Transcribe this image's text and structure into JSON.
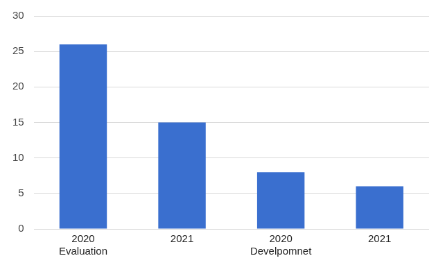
{
  "chart_data": {
    "type": "bar",
    "categories": [
      "2020\nEvaluation",
      "2021",
      "2020\nDevelpomnet",
      "2021"
    ],
    "values": [
      26,
      15,
      8,
      6
    ],
    "color": "#3a6fcf",
    "ylim": [
      0,
      30
    ],
    "yticks": [
      0,
      5,
      10,
      15,
      20,
      25,
      30
    ],
    "grid": true
  }
}
